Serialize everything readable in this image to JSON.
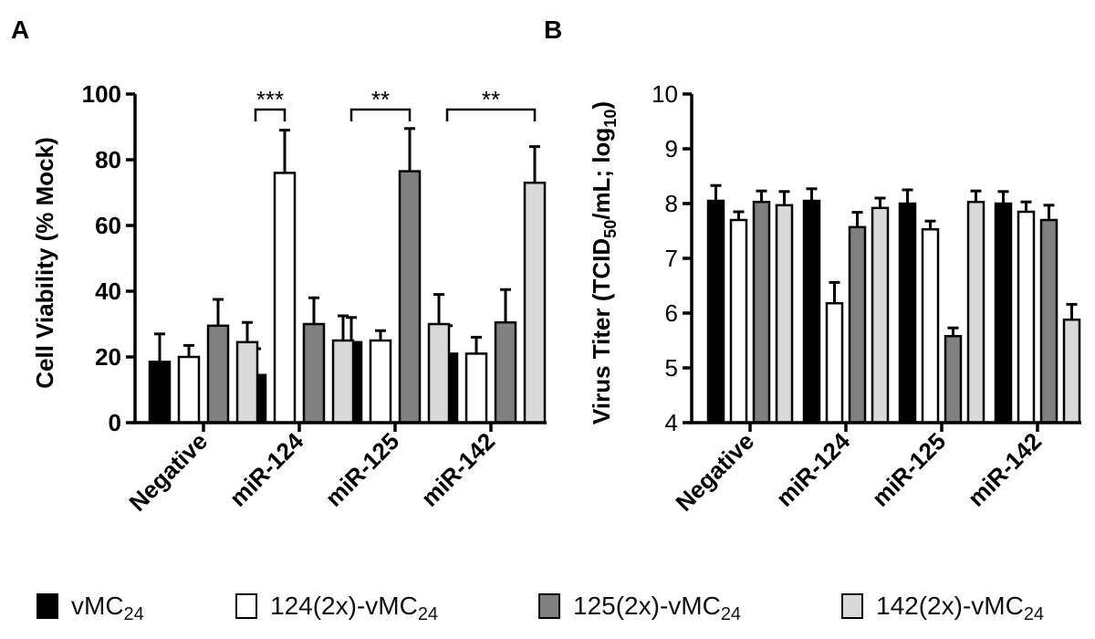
{
  "panels": {
    "a": {
      "letter": "A"
    },
    "b": {
      "letter": "B"
    }
  },
  "legend": [
    {
      "base": "vMC",
      "sub": "24",
      "color": "#000000"
    },
    {
      "base": "124(2x)-vMC",
      "sub": "24",
      "color": "#ffffff"
    },
    {
      "base": "125(2x)-vMC",
      "sub": "24",
      "color": "#808080"
    },
    {
      "base": "142(2x)-vMC",
      "sub": "24",
      "color": "#d9d9d9"
    }
  ],
  "chart_data": [
    {
      "type": "bar",
      "panel": "A",
      "title": "",
      "xlabel": "",
      "ylabel": "Cell Viability (% Mock)",
      "categories": [
        "Negative",
        "miR-124",
        "miR-125",
        "miR-142"
      ],
      "ylim": [
        0,
        100
      ],
      "yticks": [
        0,
        20,
        40,
        60,
        80,
        100
      ],
      "series": [
        {
          "name": "vMC24",
          "color": "#000000",
          "values": [
            18.5,
            14.5,
            24.5,
            21
          ],
          "errors": [
            8.5,
            8,
            7.5,
            8.5
          ]
        },
        {
          "name": "124(2x)-vMC24",
          "color": "#ffffff",
          "values": [
            20,
            76,
            25,
            21
          ],
          "errors": [
            3.5,
            13,
            3,
            5
          ]
        },
        {
          "name": "125(2x)-vMC24",
          "color": "#808080",
          "values": [
            29.5,
            30,
            76.5,
            30.5
          ],
          "errors": [
            8,
            8,
            13,
            10
          ]
        },
        {
          "name": "142(2x)-vMC24",
          "color": "#d9d9d9",
          "values": [
            24.5,
            25,
            30,
            73
          ],
          "errors": [
            6,
            7.5,
            9,
            11
          ]
        }
      ],
      "annotations": [
        {
          "category": "miR-124",
          "from_series": 0,
          "to_series": 1,
          "text": "***"
        },
        {
          "category": "miR-125",
          "from_series": 0,
          "to_series": 2,
          "text": "**"
        },
        {
          "category": "miR-142",
          "from_series": 0,
          "to_series": 3,
          "text": "**"
        }
      ]
    },
    {
      "type": "bar",
      "panel": "B",
      "title": "",
      "xlabel": "",
      "ylabel": {
        "prefix": "Virus Titer (TCID",
        "sub1": "50",
        "middle": "/mL; log",
        "sub2": "10",
        "suffix": ")"
      },
      "categories": [
        "Negative",
        "miR-124",
        "miR-125",
        "miR-142"
      ],
      "ylim": [
        4,
        10
      ],
      "yticks": [
        4,
        5,
        6,
        7,
        8,
        9,
        10
      ],
      "series": [
        {
          "name": "vMC24",
          "color": "#000000",
          "values": [
            8.05,
            8.05,
            8.0,
            8.0
          ],
          "errors": [
            0.28,
            0.22,
            0.25,
            0.22
          ]
        },
        {
          "name": "124(2x)-vMC24",
          "color": "#ffffff",
          "values": [
            7.7,
            6.18,
            7.53,
            7.85
          ],
          "errors": [
            0.15,
            0.38,
            0.15,
            0.18
          ]
        },
        {
          "name": "125(2x)-vMC24",
          "color": "#808080",
          "values": [
            8.03,
            7.57,
            5.58,
            7.7
          ],
          "errors": [
            0.2,
            0.27,
            0.15,
            0.27
          ]
        },
        {
          "name": "142(2x)-vMC24",
          "color": "#d9d9d9",
          "values": [
            7.97,
            7.92,
            8.03,
            5.88
          ],
          "errors": [
            0.25,
            0.18,
            0.2,
            0.28
          ]
        }
      ]
    }
  ]
}
